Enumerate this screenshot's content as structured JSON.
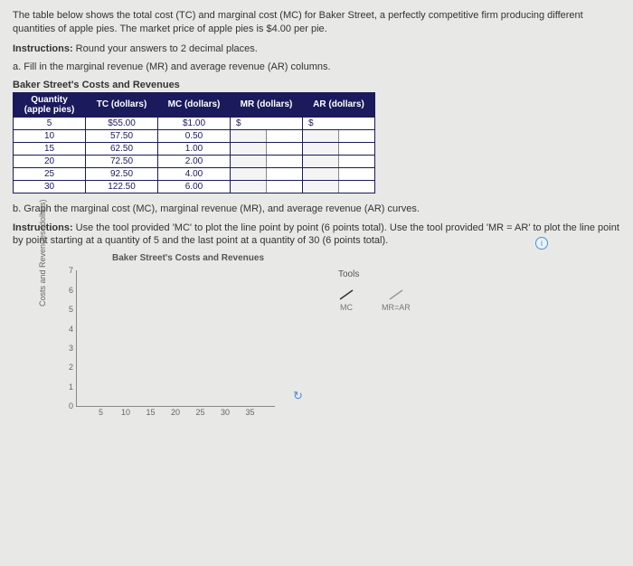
{
  "intro": "The table below shows the total cost (TC) and marginal cost (MC) for Baker Street, a perfectly competitive firm producing different quantities of apple pies. The market price of apple pies is $4.00 per pie.",
  "instructions_lead": "Instructions:",
  "instructions_text": " Round your answers to 2 decimal places.",
  "part_a": "a. Fill in the marginal revenue (MR) and average revenue (AR) columns.",
  "table_title": "Baker Street's Costs and Revenues",
  "headers": {
    "qty_l1": "Quantity",
    "qty_l2": "(apple pies)",
    "tc": "TC (dollars)",
    "mc": "MC (dollars)",
    "mr": "MR (dollars)",
    "ar": "AR (dollars)"
  },
  "rows": [
    {
      "q": "5",
      "tc": "$55.00",
      "mc": "$1.00",
      "mr": "$",
      "ar": "$"
    },
    {
      "q": "10",
      "tc": "57.50",
      "mc": "0.50",
      "mr": "",
      "ar": ""
    },
    {
      "q": "15",
      "tc": "62.50",
      "mc": "1.00",
      "mr": "",
      "ar": ""
    },
    {
      "q": "20",
      "tc": "72.50",
      "mc": "2.00",
      "mr": "",
      "ar": ""
    },
    {
      "q": "25",
      "tc": "92.50",
      "mc": "4.00",
      "mr": "",
      "ar": ""
    },
    {
      "q": "30",
      "tc": "122.50",
      "mc": "6.00",
      "mr": "",
      "ar": ""
    }
  ],
  "part_b": "b. Graph the marginal cost (MC), marginal revenue (MR), and average revenue (AR) curves.",
  "sub_instr_lead": "Instructions:",
  "sub_instr_text": " Use the tool provided 'MC' to plot the line point by point (6 points total). Use the tool provided 'MR = AR' to plot the line point by point starting at a quantity of 5 and the last point at a quantity of 30 (6 points total).",
  "chart_title": "Baker Street's Costs and Revenues",
  "yaxis_label": "Costs and Revenues (dollars)",
  "y_ticks": [
    "7",
    "6",
    "5",
    "4",
    "3",
    "2",
    "1",
    "0"
  ],
  "x_ticks": [
    "5",
    "10",
    "15",
    "20",
    "25",
    "30",
    "35"
  ],
  "tools_title": "Tools",
  "tool1": "MC",
  "tool2": "MR=AR",
  "info_icon": "i",
  "reset_icon": "↻",
  "colors": {
    "bg": "#e8e8e6",
    "header_bg": "#1a1a5c",
    "header_fg": "#ffffff",
    "border": "#1a1a5c",
    "axis": "#888888",
    "info": "#4a90d9"
  }
}
